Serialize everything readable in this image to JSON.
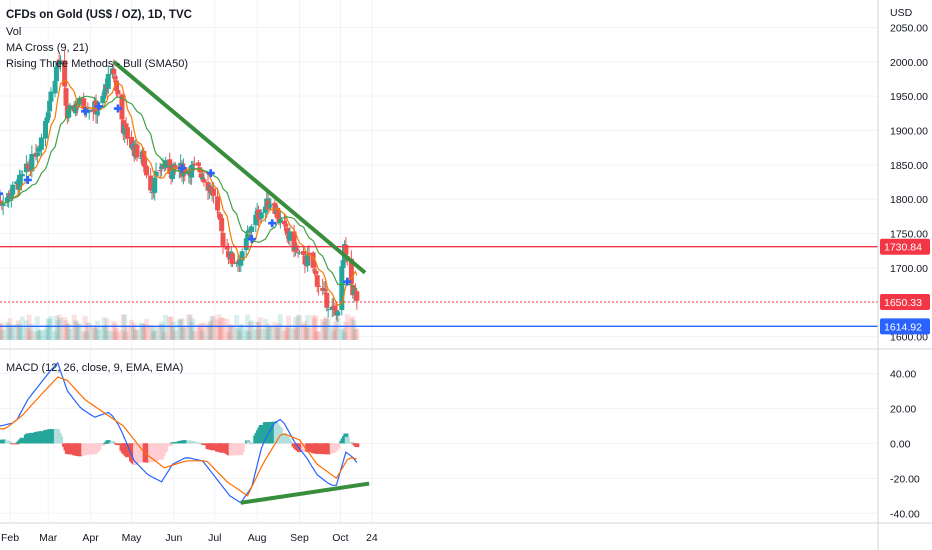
{
  "legend": {
    "title": "CFDs on Gold (US$ / OZ), 1D, TVC",
    "vol": "Vol",
    "ma_cross": "MA Cross (9, 21)",
    "pattern": "Rising Three Methods - Bull (SMA50)",
    "macd": "MACD (12, 26, close, 9, EMA, EMA)"
  },
  "colors": {
    "up": "#26a69a",
    "down": "#ef5350",
    "ma_fast": "#f57c00",
    "ma_slow": "#43a047",
    "trendline": "#388e3c",
    "resistance": "#f23645",
    "support": "#2962ff",
    "macd_line": "#2962ff",
    "signal_line": "#ff6d00",
    "cross_marker": "#2962ff"
  },
  "chart_data": [
    {
      "type": "candlestick",
      "currency": "USD",
      "ylim": [
        1595,
        2090
      ],
      "y_ticks": [
        "2050.00",
        "2000.00",
        "1950.00",
        "1900.00",
        "1850.00",
        "1800.00",
        "1750.00",
        "1700.00",
        "1650.00",
        "1600.00"
      ],
      "x_ticks": [
        "Feb",
        "Mar",
        "Apr",
        "May",
        "Jun",
        "Jul",
        "Aug",
        "Sep",
        "Oct",
        "24"
      ],
      "price_labels": [
        {
          "text": "1730.84",
          "value": 1730.84,
          "kind": "resistance"
        },
        {
          "text": "1650.33",
          "value": 1650.33,
          "kind": "last"
        },
        {
          "text": "1614.92",
          "value": 1614.92,
          "kind": "support"
        }
      ],
      "trendline": {
        "start": [
          "Apr 18",
          2000
        ],
        "end": [
          "Oct 19",
          1693
        ]
      },
      "ohlc_anchors": [
        [
          "Jan 23",
          1795
        ],
        [
          "Jan 31",
          1805
        ],
        [
          "Feb 9",
          1828
        ],
        [
          "Feb 17",
          1855
        ],
        [
          "Feb 24",
          1890
        ],
        [
          "Mar 1",
          1935
        ],
        [
          "Mar 8",
          2000
        ],
        [
          "Mar 11",
          1990
        ],
        [
          "Mar 15",
          1920
        ],
        [
          "Mar 22",
          1940
        ],
        [
          "Mar 31",
          1935
        ],
        [
          "Apr 8",
          1930
        ],
        [
          "Apr 13",
          1970
        ],
        [
          "Apr 18",
          1985
        ],
        [
          "Apr 25",
          1905
        ],
        [
          "May 2",
          1875
        ],
        [
          "May 9",
          1860
        ],
        [
          "May 16",
          1815
        ],
        [
          "May 23",
          1850
        ],
        [
          "May 31",
          1840
        ],
        [
          "Jun 10",
          1845
        ],
        [
          "Jun 20",
          1842
        ],
        [
          "Jun 30",
          1808
        ],
        [
          "Jul 7",
          1740
        ],
        [
          "Jul 14",
          1710
        ],
        [
          "Jul 21",
          1715
        ],
        [
          "Jul 28",
          1765
        ],
        [
          "Aug 5",
          1785
        ],
        [
          "Aug 12",
          1800
        ],
        [
          "Aug 19",
          1760
        ],
        [
          "Aug 26",
          1740
        ],
        [
          "Sep 2",
          1710
        ],
        [
          "Sep 9",
          1712
        ],
        [
          "Sep 16",
          1670
        ],
        [
          "Sep 23",
          1645
        ],
        [
          "Sep 28",
          1630
        ],
        [
          "Oct 4",
          1725
        ],
        [
          "Oct 10",
          1668
        ],
        [
          "Oct 14",
          1650
        ]
      ],
      "cross_markers": [
        [
          "Jan 24",
          1808
        ],
        [
          "Feb 14",
          1828
        ],
        [
          "Mar 28",
          1928
        ],
        [
          "Apr 7",
          1935
        ],
        [
          "Apr 21",
          1932
        ],
        [
          "Jun 7",
          1845
        ],
        [
          "Jun 28",
          1838
        ],
        [
          "Jul 28",
          1742
        ],
        [
          "Aug 12",
          1765
        ],
        [
          "Oct 6",
          1680
        ]
      ]
    },
    {
      "type": "macd",
      "ylim": [
        -45,
        50
      ],
      "y_ticks": [
        "40.00",
        "20.00",
        "0.00",
        "-20.00",
        "-40.00"
      ],
      "trendline": {
        "start": [
          "Jul 20",
          -34
        ],
        "end": [
          "Oct 22",
          -23
        ]
      },
      "macd_anchors": [
        [
          "Jan 15",
          15
        ],
        [
          "Jan 25",
          10
        ],
        [
          "Feb 5",
          12
        ],
        [
          "Feb 14",
          25
        ],
        [
          "Feb 24",
          35
        ],
        [
          "Mar 4",
          43
        ],
        [
          "Mar 8",
          46
        ],
        [
          "Mar 15",
          30
        ],
        [
          "Mar 25",
          20
        ],
        [
          "Apr 4",
          15
        ],
        [
          "Apr 15",
          18
        ],
        [
          "Apr 22",
          10
        ],
        [
          "May 3",
          -10
        ],
        [
          "May 13",
          -18
        ],
        [
          "May 23",
          -22
        ],
        [
          "May 31",
          -12
        ],
        [
          "Jun 10",
          -8
        ],
        [
          "Jun 22",
          -10
        ],
        [
          "Jul 2",
          -20
        ],
        [
          "Jul 12",
          -30
        ],
        [
          "Jul 20",
          -34
        ],
        [
          "Jul 28",
          -25
        ],
        [
          "Aug 5",
          0
        ],
        [
          "Aug 14",
          12
        ],
        [
          "Aug 19",
          14
        ],
        [
          "Aug 29",
          0
        ],
        [
          "Sep 6",
          -8
        ],
        [
          "Sep 14",
          -18
        ],
        [
          "Sep 24",
          -24
        ],
        [
          "Sep 28",
          -24
        ],
        [
          "Oct 5",
          -5
        ],
        [
          "Oct 10",
          -8
        ],
        [
          "Oct 14",
          -12
        ]
      ],
      "signal_anchors": [
        [
          "Jan 15",
          10
        ],
        [
          "Jan 28",
          8
        ],
        [
          "Feb 10",
          16
        ],
        [
          "Feb 24",
          28
        ],
        [
          "Mar 8",
          38
        ],
        [
          "Mar 15",
          36
        ],
        [
          "Mar 28",
          25
        ],
        [
          "Apr 10",
          18
        ],
        [
          "Apr 25",
          10
        ],
        [
          "May 10",
          -5
        ],
        [
          "May 25",
          -14
        ],
        [
          "Jun 10",
          -10
        ],
        [
          "Jun 25",
          -10
        ],
        [
          "Jul 10",
          -22
        ],
        [
          "Jul 25",
          -30
        ],
        [
          "Aug 5",
          -12
        ],
        [
          "Aug 19",
          6
        ],
        [
          "Sep 1",
          2
        ],
        [
          "Sep 14",
          -12
        ],
        [
          "Sep 28",
          -20
        ],
        [
          "Oct 7",
          -8
        ],
        [
          "Oct 14",
          -9
        ]
      ]
    }
  ]
}
